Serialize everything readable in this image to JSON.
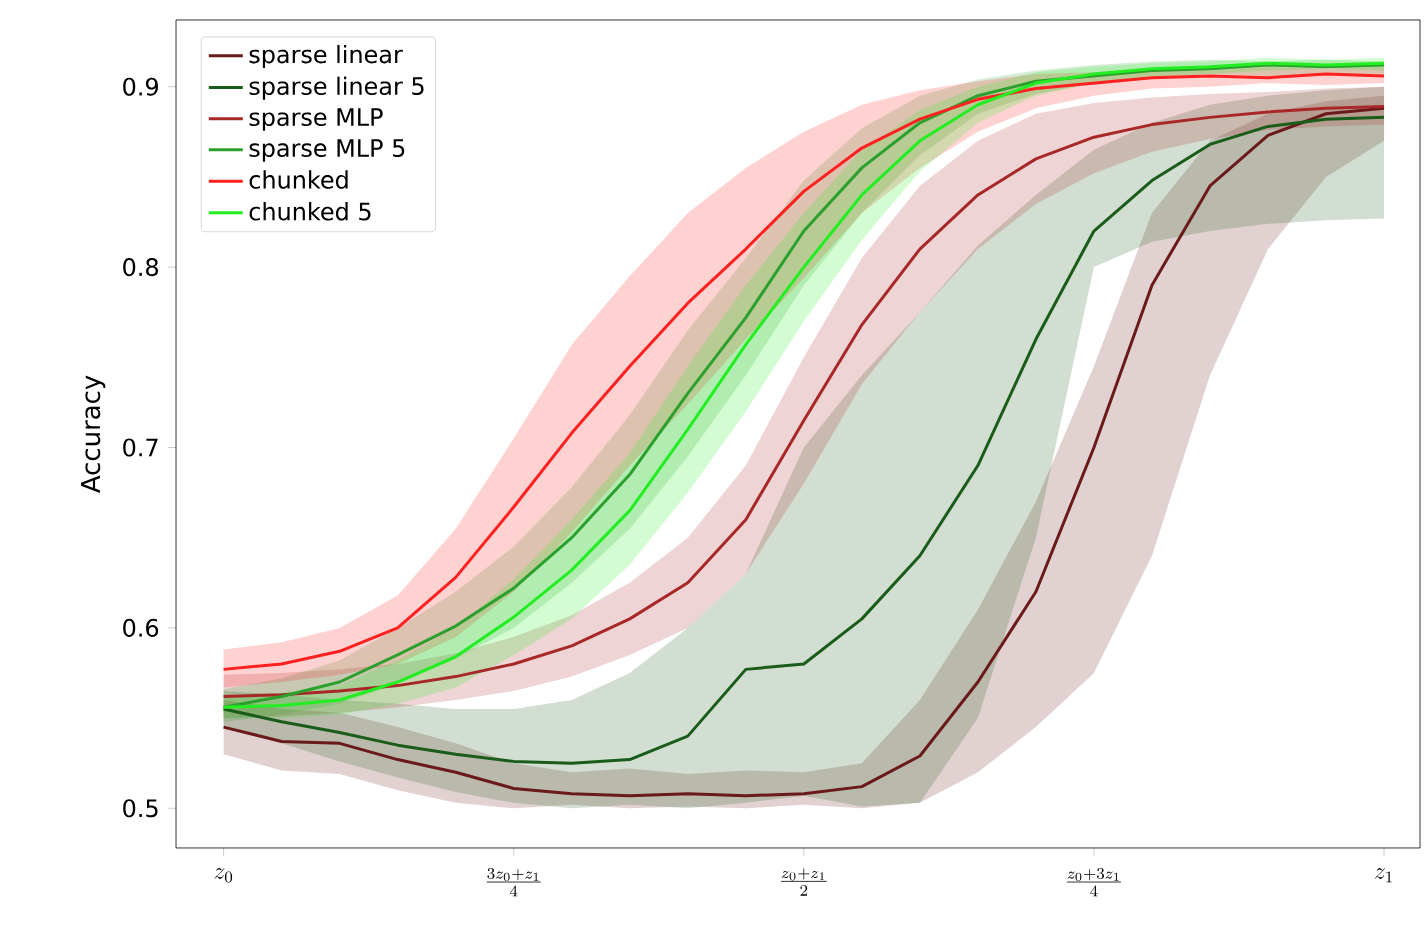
{
  "chart_data": {
    "type": "line",
    "ylabel": "Accuracy",
    "x": [
      0,
      0.05,
      0.1,
      0.15,
      0.2,
      0.25,
      0.3,
      0.35,
      0.4,
      0.45,
      0.5,
      0.55,
      0.6,
      0.65,
      0.7,
      0.75,
      0.8,
      0.85,
      0.9,
      0.95,
      1
    ],
    "xlim": [
      -0.041,
      1.031
    ],
    "ylim": [
      0.478,
      0.937
    ],
    "xticks": [
      {
        "value": 0,
        "label": "z_0"
      },
      {
        "value": 0.25,
        "label": "\\frac{3z_0 + z_1}{4}"
      },
      {
        "value": 0.5,
        "label": "\\frac{z_0 + z_1}{2}"
      },
      {
        "value": 0.75,
        "label": "\\frac{z_0 + 3z_1}{4}"
      },
      {
        "value": 1,
        "label": "z_1"
      }
    ],
    "yticks": [
      0.5,
      0.6,
      0.7,
      0.8,
      0.9
    ],
    "grid": false,
    "legend": "top left",
    "marker": "none",
    "line_style": "solid",
    "series": [
      {
        "name": "sparse linear",
        "color": "#6b1a1a",
        "values": [
          0.545,
          0.537,
          0.536,
          0.527,
          0.52,
          0.511,
          0.508,
          0.507,
          0.508,
          0.507,
          0.508,
          0.512,
          0.529,
          0.57,
          0.62,
          0.7,
          0.79,
          0.845,
          0.873,
          0.885,
          0.888
        ],
        "lower": [
          0.53,
          0.521,
          0.519,
          0.51,
          0.503,
          0.5,
          0.502,
          0.5,
          0.501,
          0.5,
          0.502,
          0.5,
          0.503,
          0.52,
          0.545,
          0.575,
          0.64,
          0.74,
          0.81,
          0.85,
          0.87
        ],
        "upper": [
          0.56,
          0.555,
          0.553,
          0.545,
          0.536,
          0.525,
          0.52,
          0.522,
          0.519,
          0.521,
          0.52,
          0.525,
          0.56,
          0.61,
          0.67,
          0.745,
          0.83,
          0.87,
          0.885,
          0.892,
          0.895
        ]
      },
      {
        "name": "sparse linear 5",
        "color": "#1a5c1a",
        "values": [
          0.555,
          0.548,
          0.542,
          0.535,
          0.53,
          0.526,
          0.525,
          0.527,
          0.54,
          0.577,
          0.58,
          0.605,
          0.64,
          0.69,
          0.76,
          0.82,
          0.848,
          0.868,
          0.878,
          0.882,
          0.883
        ],
        "lower": [
          0.545,
          0.536,
          0.526,
          0.517,
          0.509,
          0.503,
          0.5,
          0.502,
          0.5,
          0.503,
          0.507,
          0.501,
          0.503,
          0.55,
          0.65,
          0.8,
          0.814,
          0.82,
          0.824,
          0.826,
          0.827
        ],
        "upper": [
          0.565,
          0.563,
          0.56,
          0.558,
          0.555,
          0.555,
          0.56,
          0.575,
          0.6,
          0.63,
          0.7,
          0.74,
          0.775,
          0.812,
          0.84,
          0.865,
          0.88,
          0.89,
          0.895,
          0.898,
          0.9
        ]
      },
      {
        "name": "sparse MLP",
        "color": "#a82828",
        "values": [
          0.562,
          0.563,
          0.565,
          0.568,
          0.573,
          0.58,
          0.59,
          0.605,
          0.625,
          0.66,
          0.715,
          0.768,
          0.81,
          0.84,
          0.86,
          0.872,
          0.879,
          0.883,
          0.886,
          0.888,
          0.889
        ],
        "lower": [
          0.55,
          0.551,
          0.553,
          0.556,
          0.56,
          0.565,
          0.573,
          0.585,
          0.6,
          0.63,
          0.68,
          0.735,
          0.775,
          0.81,
          0.835,
          0.852,
          0.864,
          0.871,
          0.876,
          0.878,
          0.879
        ],
        "upper": [
          0.574,
          0.575,
          0.577,
          0.58,
          0.586,
          0.595,
          0.607,
          0.625,
          0.65,
          0.69,
          0.75,
          0.805,
          0.845,
          0.87,
          0.885,
          0.891,
          0.894,
          0.896,
          0.897,
          0.899,
          0.9
        ]
      },
      {
        "name": "sparse MLP 5",
        "color": "#2ca02c",
        "values": [
          0.556,
          0.562,
          0.57,
          0.585,
          0.601,
          0.622,
          0.65,
          0.685,
          0.73,
          0.772,
          0.82,
          0.855,
          0.88,
          0.895,
          0.903,
          0.906,
          0.909,
          0.91,
          0.912,
          0.911,
          0.912
        ],
        "lower": [
          0.548,
          0.552,
          0.558,
          0.569,
          0.583,
          0.6,
          0.625,
          0.655,
          0.695,
          0.74,
          0.79,
          0.83,
          0.862,
          0.885,
          0.896,
          0.902,
          0.905,
          0.907,
          0.906,
          0.907,
          0.906
        ],
        "upper": [
          0.566,
          0.572,
          0.582,
          0.6,
          0.62,
          0.645,
          0.678,
          0.718,
          0.765,
          0.805,
          0.848,
          0.877,
          0.895,
          0.904,
          0.909,
          0.912,
          0.914,
          0.915,
          0.914,
          0.915,
          0.914
        ]
      },
      {
        "name": "chunked",
        "color": "#ff2020",
        "values": [
          0.577,
          0.58,
          0.587,
          0.6,
          0.628,
          0.667,
          0.708,
          0.745,
          0.78,
          0.81,
          0.842,
          0.866,
          0.882,
          0.893,
          0.899,
          0.902,
          0.905,
          0.906,
          0.905,
          0.907,
          0.906
        ],
        "lower": [
          0.567,
          0.57,
          0.574,
          0.58,
          0.595,
          0.62,
          0.653,
          0.69,
          0.724,
          0.76,
          0.794,
          0.83,
          0.855,
          0.875,
          0.888,
          0.895,
          0.899,
          0.9,
          0.902,
          0.901,
          0.902
        ],
        "upper": [
          0.588,
          0.592,
          0.6,
          0.618,
          0.655,
          0.705,
          0.757,
          0.795,
          0.83,
          0.855,
          0.875,
          0.89,
          0.898,
          0.903,
          0.907,
          0.908,
          0.91,
          0.909,
          0.911,
          0.91,
          0.911
        ]
      },
      {
        "name": "chunked 5",
        "color": "#22ee22",
        "values": [
          0.556,
          0.557,
          0.56,
          0.57,
          0.584,
          0.606,
          0.632,
          0.665,
          0.71,
          0.757,
          0.8,
          0.84,
          0.87,
          0.89,
          0.902,
          0.907,
          0.91,
          0.911,
          0.913,
          0.912,
          0.913
        ],
        "lower": [
          0.55,
          0.55,
          0.552,
          0.558,
          0.567,
          0.585,
          0.605,
          0.635,
          0.675,
          0.72,
          0.77,
          0.815,
          0.853,
          0.88,
          0.895,
          0.902,
          0.906,
          0.907,
          0.909,
          0.91,
          0.909
        ],
        "upper": [
          0.562,
          0.564,
          0.568,
          0.582,
          0.6,
          0.627,
          0.66,
          0.697,
          0.745,
          0.79,
          0.83,
          0.865,
          0.887,
          0.9,
          0.908,
          0.911,
          0.913,
          0.914,
          0.916,
          0.915,
          0.916
        ]
      }
    ]
  }
}
